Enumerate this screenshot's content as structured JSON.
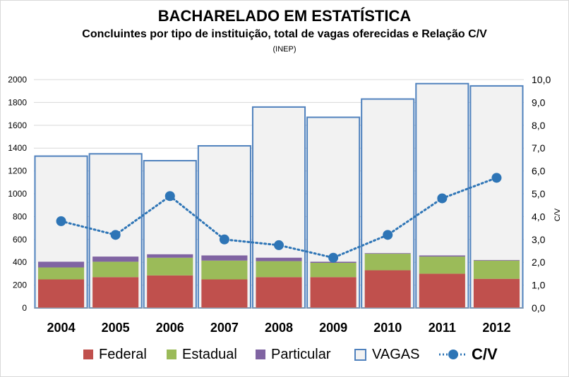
{
  "header": {
    "title": "BACHARELADO EM ESTATÍSTICA",
    "subtitle": "Concluintes por tipo de instituição, total de vagas oferecidas e Relação C/V",
    "source": "(INEP)"
  },
  "legend": {
    "federal": "Federal",
    "estadual": "Estadual",
    "particular": "Particular",
    "vagas": "VAGAS",
    "cv": "C/V"
  },
  "colors": {
    "federal": "#c0504d",
    "estadual": "#9bbb59",
    "particular": "#8064a2",
    "vagas_fill": "#f2f2f2",
    "vagas_stroke": "#4f81bd",
    "cv": "#2e75b6"
  },
  "chart_data": {
    "type": "bar",
    "categories": [
      "2004",
      "2005",
      "2006",
      "2007",
      "2008",
      "2009",
      "2010",
      "2011",
      "2012"
    ],
    "series": [
      {
        "name": "Federal",
        "values": [
          250,
          270,
          285,
          250,
          270,
          270,
          330,
          300,
          255
        ]
      },
      {
        "name": "Estadual",
        "values": [
          105,
          135,
          155,
          165,
          140,
          125,
          145,
          150,
          160
        ]
      },
      {
        "name": "Particular",
        "values": [
          50,
          45,
          30,
          45,
          30,
          10,
          5,
          10,
          5
        ]
      },
      {
        "name": "VAGAS",
        "values": [
          1330,
          1350,
          1290,
          1420,
          1760,
          1670,
          1830,
          1965,
          1945
        ]
      },
      {
        "name": "C/V",
        "axis": "right",
        "values": [
          3.8,
          3.2,
          4.9,
          3.0,
          2.75,
          2.2,
          3.2,
          4.8,
          5.7
        ]
      }
    ],
    "y_left": {
      "ylim": [
        0,
        2000
      ],
      "ticks": [
        "0",
        "200",
        "400",
        "600",
        "800",
        "1000",
        "1200",
        "1400",
        "1600",
        "1800",
        "2000"
      ]
    },
    "y_right": {
      "label": "C/V",
      "ylim": [
        0,
        10
      ],
      "ticks": [
        "0,0",
        "1,0",
        "2,0",
        "3,0",
        "4,0",
        "5,0",
        "6,0",
        "7,0",
        "8,0",
        "9,0",
        "10,0"
      ]
    },
    "grid": true,
    "legend_position": "bottom"
  }
}
